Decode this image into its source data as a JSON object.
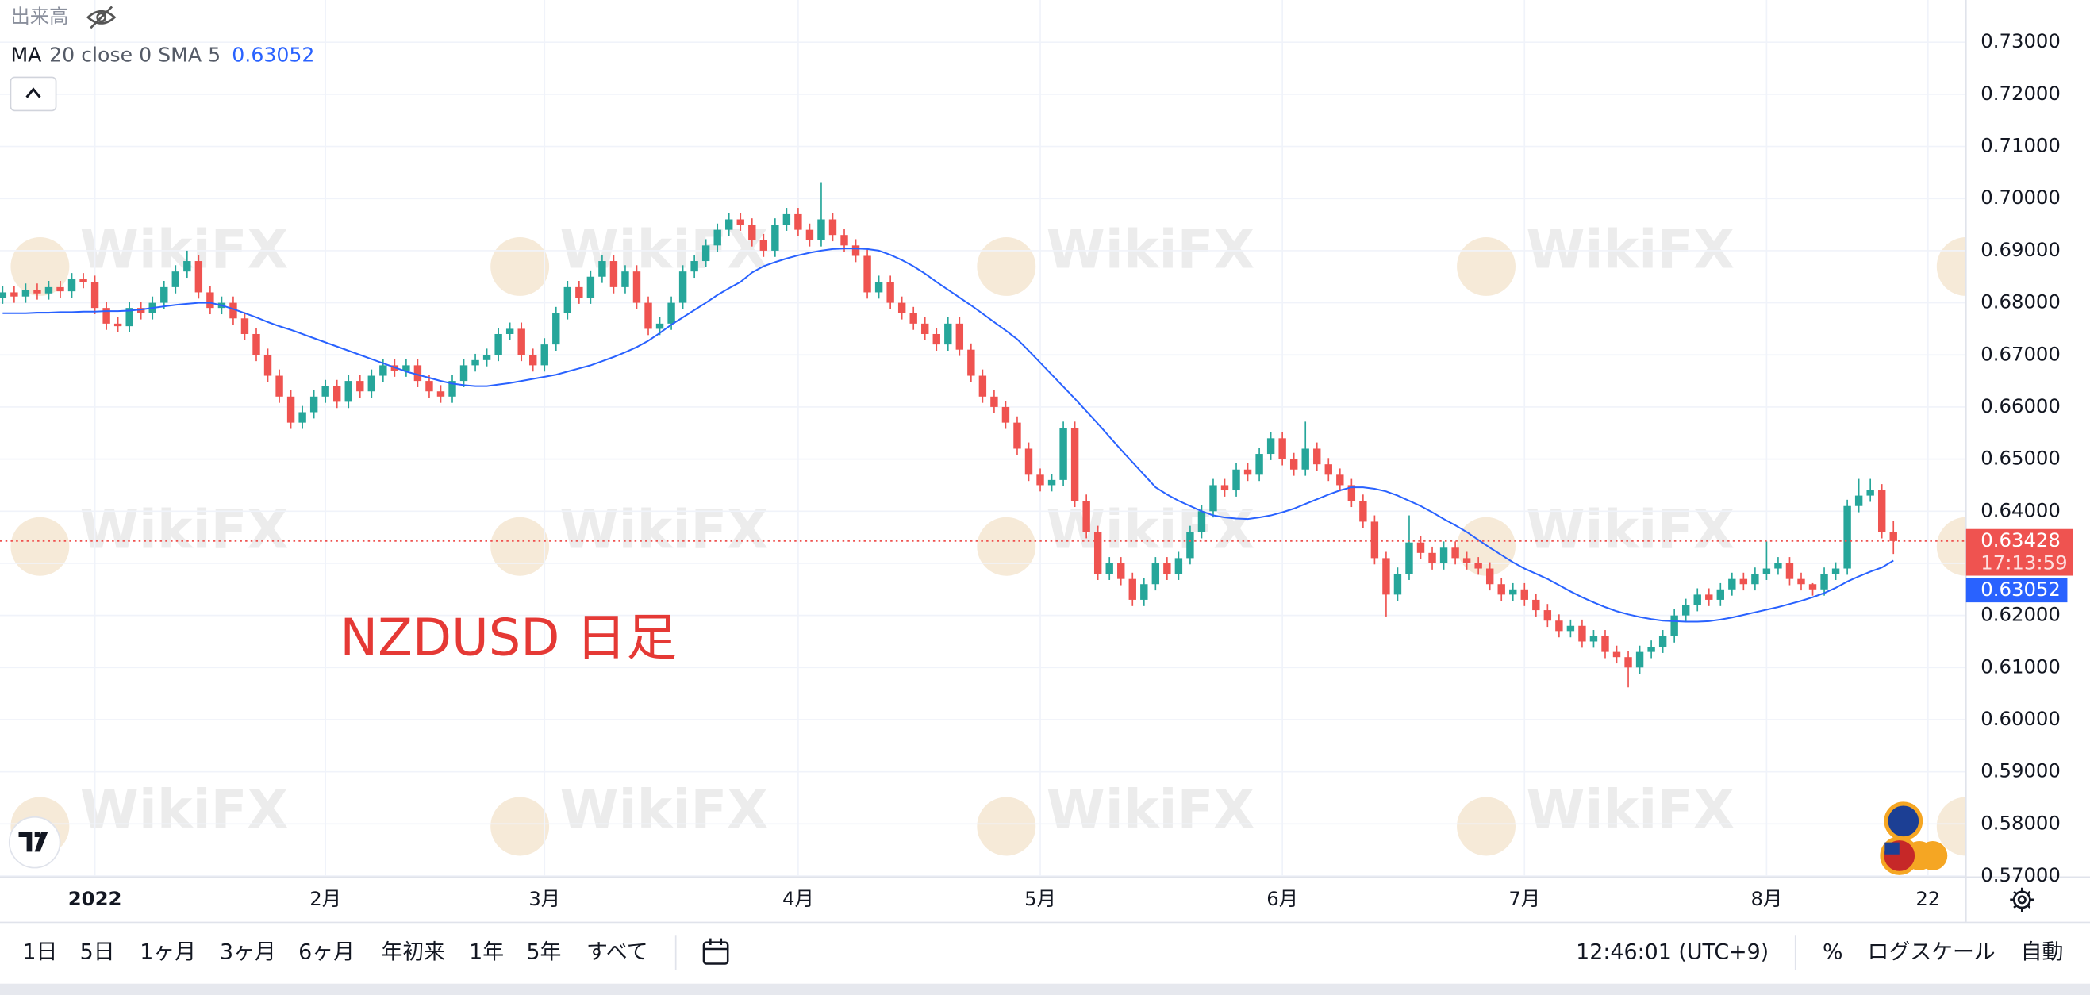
{
  "chart_data": {
    "type": "candlestick",
    "volume_label": "出来高",
    "indicator_name": "MA",
    "indicator_params": "20 close 0 SMA 5",
    "annotation": "NZDUSD 日足",
    "watermark": "WikiFX",
    "countdown": "17:13:59",
    "up_color": "#26a69a",
    "down_color": "#ef5350",
    "grid": true,
    "ylim": [
      0.5698,
      0.7381
    ],
    "yticks": [
      {
        "value": 0.57,
        "label": "0.57000"
      },
      {
        "value": 0.58,
        "label": "0.58000"
      },
      {
        "value": 0.59,
        "label": "0.59000"
      },
      {
        "value": 0.6,
        "label": "0.60000"
      },
      {
        "value": 0.61,
        "label": "0.61000"
      },
      {
        "value": 0.62,
        "label": "0.62000"
      },
      {
        "value": 0.63,
        "label": "0.63000"
      },
      {
        "value": 0.64,
        "label": "0.64000"
      },
      {
        "value": 0.65,
        "label": "0.65000"
      },
      {
        "value": 0.66,
        "label": "0.66000"
      },
      {
        "value": 0.67,
        "label": "0.67000"
      },
      {
        "value": 0.68,
        "label": "0.68000"
      },
      {
        "value": 0.69,
        "label": "0.69000"
      },
      {
        "value": 0.7,
        "label": "0.70000"
      },
      {
        "value": 0.71,
        "label": "0.71000"
      },
      {
        "value": 0.72,
        "label": "0.72000"
      },
      {
        "value": 0.73,
        "label": "0.73000"
      }
    ],
    "xlim": [
      -0.23,
      170.3
    ],
    "xticks": [
      {
        "value": 8,
        "label": "2022"
      },
      {
        "value": 28,
        "label": "2月"
      },
      {
        "value": 47,
        "label": "3月"
      },
      {
        "value": 69,
        "label": "4月"
      },
      {
        "value": 90,
        "label": "5月"
      },
      {
        "value": 111,
        "label": "6月"
      },
      {
        "value": 132,
        "label": "7月"
      },
      {
        "value": 153,
        "label": "8月"
      },
      {
        "value": 167,
        "label": "22"
      }
    ],
    "open": [
      0.681,
      0.682,
      0.6812,
      0.6825,
      0.6818,
      0.683,
      0.6822,
      0.6845,
      0.684,
      0.679,
      0.676,
      0.6755,
      0.679,
      0.678,
      0.68,
      0.683,
      0.686,
      0.688,
      0.682,
      0.679,
      0.68,
      0.677,
      0.674,
      0.67,
      0.666,
      0.662,
      0.657,
      0.659,
      0.662,
      0.664,
      0.661,
      0.665,
      0.663,
      0.666,
      0.668,
      0.667,
      0.668,
      0.665,
      0.663,
      0.662,
      0.665,
      0.668,
      0.669,
      0.67,
      0.674,
      0.675,
      0.67,
      0.668,
      0.672,
      0.678,
      0.683,
      0.681,
      0.685,
      0.688,
      0.683,
      0.686,
      0.68,
      0.675,
      0.676,
      0.68,
      0.686,
      0.688,
      0.691,
      0.694,
      0.696,
      0.695,
      0.692,
      0.69,
      0.695,
      0.697,
      0.694,
      0.692,
      0.696,
      0.693,
      0.691,
      0.689,
      0.682,
      0.684,
      0.68,
      0.678,
      0.676,
      0.674,
      0.672,
      0.676,
      0.671,
      0.666,
      0.662,
      0.66,
      0.657,
      0.652,
      0.647,
      0.645,
      0.646,
      0.656,
      0.642,
      0.636,
      0.628,
      0.63,
      0.627,
      0.623,
      0.626,
      0.63,
      0.628,
      0.631,
      0.636,
      0.64,
      0.645,
      0.644,
      0.648,
      0.647,
      0.651,
      0.654,
      0.65,
      0.648,
      0.652,
      0.649,
      0.647,
      0.645,
      0.642,
      0.638,
      0.631,
      0.624,
      0.628,
      0.634,
      0.632,
      0.63,
      0.633,
      0.631,
      0.63,
      0.629,
      0.626,
      0.624,
      0.625,
      0.623,
      0.621,
      0.619,
      0.617,
      0.618,
      0.615,
      0.616,
      0.613,
      0.612,
      0.61,
      0.613,
      0.614,
      0.616,
      0.62,
      0.622,
      0.624,
      0.623,
      0.625,
      0.627,
      0.626,
      0.628,
      0.629,
      0.63,
      0.627,
      0.626,
      0.625,
      0.628,
      0.629,
      0.641,
      0.643,
      0.644,
      0.636
    ],
    "high": [
      0.6832,
      0.6832,
      0.6837,
      0.6837,
      0.6842,
      0.6842,
      0.6857,
      0.6857,
      0.6852,
      0.6802,
      0.6772,
      0.6802,
      0.6802,
      0.6812,
      0.6842,
      0.6872,
      0.69,
      0.6892,
      0.6832,
      0.6812,
      0.6812,
      0.6782,
      0.6752,
      0.6712,
      0.6672,
      0.6632,
      0.6602,
      0.6632,
      0.6652,
      0.6652,
      0.6662,
      0.6662,
      0.6672,
      0.6692,
      0.6692,
      0.6692,
      0.6692,
      0.6662,
      0.6642,
      0.6662,
      0.6692,
      0.6702,
      0.6712,
      0.6752,
      0.6762,
      0.6762,
      0.6712,
      0.6732,
      0.6792,
      0.6842,
      0.6842,
      0.6862,
      0.6892,
      0.6892,
      0.6872,
      0.6872,
      0.6812,
      0.6772,
      0.6812,
      0.6872,
      0.6892,
      0.6922,
      0.6952,
      0.6972,
      0.6972,
      0.6962,
      0.6932,
      0.6962,
      0.6982,
      0.6982,
      0.6952,
      0.703,
      0.6972,
      0.6942,
      0.6922,
      0.6902,
      0.6852,
      0.6852,
      0.6812,
      0.6792,
      0.6772,
      0.6752,
      0.6772,
      0.6772,
      0.6722,
      0.6672,
      0.6632,
      0.6612,
      0.6582,
      0.6532,
      0.6482,
      0.6472,
      0.6572,
      0.6572,
      0.6432,
      0.6372,
      0.6312,
      0.6312,
      0.6282,
      0.6272,
      0.6312,
      0.6312,
      0.6322,
      0.6372,
      0.6412,
      0.6462,
      0.6462,
      0.6492,
      0.6492,
      0.6522,
      0.6552,
      0.6552,
      0.6512,
      0.6572,
      0.6532,
      0.6502,
      0.6482,
      0.6462,
      0.6432,
      0.6392,
      0.6322,
      0.6292,
      0.6392,
      0.6352,
      0.6332,
      0.6342,
      0.6342,
      0.6322,
      0.6312,
      0.6302,
      0.6272,
      0.6262,
      0.6262,
      0.6242,
      0.6222,
      0.6202,
      0.6192,
      0.6192,
      0.6172,
      0.6172,
      0.6142,
      0.6132,
      0.6142,
      0.6152,
      0.6172,
      0.6212,
      0.6232,
      0.6252,
      0.6252,
      0.6262,
      0.6282,
      0.6282,
      0.6292,
      0.6342,
      0.6312,
      0.6312,
      0.6282,
      0.6262,
      0.6292,
      0.6302,
      0.6422,
      0.6462,
      0.6462,
      0.6452,
      0.6382
    ],
    "low": [
      0.6798,
      0.68,
      0.68,
      0.6806,
      0.6806,
      0.681,
      0.681,
      0.6828,
      0.6778,
      0.6748,
      0.6743,
      0.6743,
      0.6768,
      0.6768,
      0.6788,
      0.6818,
      0.6848,
      0.6808,
      0.6778,
      0.6778,
      0.6758,
      0.6728,
      0.6688,
      0.6648,
      0.6608,
      0.6558,
      0.6558,
      0.6578,
      0.6608,
      0.6598,
      0.6598,
      0.6618,
      0.6618,
      0.6648,
      0.6658,
      0.6658,
      0.6638,
      0.6618,
      0.6608,
      0.6608,
      0.6638,
      0.6668,
      0.6678,
      0.6688,
      0.6728,
      0.6688,
      0.6668,
      0.6668,
      0.6708,
      0.6768,
      0.6798,
      0.6798,
      0.6838,
      0.6818,
      0.6818,
      0.6788,
      0.6738,
      0.6738,
      0.6748,
      0.6788,
      0.6848,
      0.6868,
      0.6898,
      0.6928,
      0.6938,
      0.6908,
      0.6888,
      0.6888,
      0.6938,
      0.6928,
      0.6908,
      0.6908,
      0.6918,
      0.6898,
      0.6878,
      0.6808,
      0.6808,
      0.6788,
      0.6768,
      0.6748,
      0.6728,
      0.6708,
      0.6708,
      0.6698,
      0.6648,
      0.6608,
      0.6588,
      0.6558,
      0.6508,
      0.6458,
      0.6438,
      0.6438,
      0.6448,
      0.6408,
      0.6348,
      0.6268,
      0.6268,
      0.6258,
      0.6218,
      0.6218,
      0.6248,
      0.6268,
      0.6268,
      0.6298,
      0.6348,
      0.6388,
      0.6428,
      0.6428,
      0.6458,
      0.6458,
      0.6498,
      0.6488,
      0.6468,
      0.6468,
      0.6478,
      0.6458,
      0.6438,
      0.6408,
      0.6368,
      0.6298,
      0.6198,
      0.6228,
      0.6268,
      0.6308,
      0.6288,
      0.6288,
      0.6298,
      0.6288,
      0.6278,
      0.6248,
      0.6228,
      0.6228,
      0.6218,
      0.6198,
      0.6178,
      0.6158,
      0.6158,
      0.6138,
      0.6138,
      0.6118,
      0.6108,
      0.6062,
      0.6088,
      0.6118,
      0.6128,
      0.6148,
      0.6188,
      0.6208,
      0.6218,
      0.6218,
      0.6238,
      0.6248,
      0.6248,
      0.6268,
      0.6278,
      0.6258,
      0.6248,
      0.6238,
      0.6238,
      0.6268,
      0.6278,
      0.6398,
      0.6418,
      0.6348,
      0.6318
    ],
    "close": [
      0.682,
      0.6812,
      0.6825,
      0.6818,
      0.683,
      0.6822,
      0.6845,
      0.684,
      0.679,
      0.676,
      0.6755,
      0.679,
      0.678,
      0.68,
      0.683,
      0.686,
      0.688,
      0.682,
      0.679,
      0.68,
      0.677,
      0.674,
      0.67,
      0.666,
      0.662,
      0.657,
      0.659,
      0.662,
      0.664,
      0.661,
      0.665,
      0.663,
      0.666,
      0.668,
      0.667,
      0.668,
      0.665,
      0.663,
      0.662,
      0.665,
      0.668,
      0.669,
      0.67,
      0.674,
      0.675,
      0.67,
      0.668,
      0.672,
      0.678,
      0.683,
      0.681,
      0.685,
      0.688,
      0.683,
      0.686,
      0.68,
      0.675,
      0.676,
      0.68,
      0.686,
      0.688,
      0.691,
      0.694,
      0.696,
      0.695,
      0.692,
      0.69,
      0.695,
      0.697,
      0.694,
      0.692,
      0.696,
      0.693,
      0.691,
      0.689,
      0.682,
      0.684,
      0.68,
      0.678,
      0.676,
      0.674,
      0.672,
      0.676,
      0.671,
      0.666,
      0.662,
      0.66,
      0.657,
      0.652,
      0.647,
      0.645,
      0.646,
      0.656,
      0.642,
      0.636,
      0.628,
      0.63,
      0.627,
      0.623,
      0.626,
      0.63,
      0.628,
      0.631,
      0.636,
      0.64,
      0.645,
      0.644,
      0.648,
      0.647,
      0.651,
      0.654,
      0.65,
      0.648,
      0.652,
      0.649,
      0.647,
      0.645,
      0.642,
      0.638,
      0.631,
      0.624,
      0.628,
      0.634,
      0.632,
      0.63,
      0.633,
      0.631,
      0.63,
      0.629,
      0.626,
      0.624,
      0.625,
      0.623,
      0.621,
      0.619,
      0.617,
      0.618,
      0.615,
      0.616,
      0.613,
      0.612,
      0.61,
      0.613,
      0.614,
      0.616,
      0.62,
      0.622,
      0.624,
      0.623,
      0.625,
      0.627,
      0.626,
      0.628,
      0.629,
      0.63,
      0.627,
      0.626,
      0.625,
      0.628,
      0.629,
      0.641,
      0.643,
      0.644,
      0.636,
      0.63428
    ],
    "ma": {
      "color": "#2962ff",
      "values": [
        0.678,
        0.678,
        0.678,
        0.6781,
        0.6781,
        0.6782,
        0.6782,
        0.6783,
        0.6783,
        0.6784,
        0.6784,
        0.6785,
        0.6787,
        0.679,
        0.6793,
        0.6796,
        0.6798,
        0.68,
        0.68,
        0.6795,
        0.6788,
        0.678,
        0.6772,
        0.6763,
        0.6755,
        0.6748,
        0.674,
        0.6732,
        0.6724,
        0.6716,
        0.6708,
        0.67,
        0.6692,
        0.6684,
        0.6676,
        0.6668,
        0.6662,
        0.6656,
        0.665,
        0.6645,
        0.6642,
        0.664,
        0.664,
        0.6643,
        0.6646,
        0.665,
        0.6654,
        0.6658,
        0.6662,
        0.6668,
        0.6674,
        0.668,
        0.6688,
        0.6696,
        0.6705,
        0.6715,
        0.6727,
        0.6742,
        0.6758,
        0.6772,
        0.6786,
        0.68,
        0.6815,
        0.6828,
        0.684,
        0.6858,
        0.687,
        0.6878,
        0.6885,
        0.6891,
        0.6896,
        0.69,
        0.6903,
        0.6904,
        0.6904,
        0.6903,
        0.69,
        0.6892,
        0.6882,
        0.687,
        0.6856,
        0.684,
        0.6825,
        0.681,
        0.6795,
        0.6779,
        0.6763,
        0.6747,
        0.673,
        0.6708,
        0.6685,
        0.6662,
        0.6639,
        0.6616,
        0.6592,
        0.6568,
        0.6543,
        0.6518,
        0.6494,
        0.647,
        0.6446,
        0.6432,
        0.642,
        0.641,
        0.64,
        0.6392,
        0.6388,
        0.6386,
        0.6385,
        0.6388,
        0.6392,
        0.6398,
        0.6405,
        0.6414,
        0.6423,
        0.6432,
        0.644,
        0.6446,
        0.6446,
        0.6443,
        0.6438,
        0.643,
        0.642,
        0.641,
        0.6398,
        0.6385,
        0.6373,
        0.636,
        0.6345,
        0.633,
        0.6316,
        0.6302,
        0.629,
        0.628,
        0.627,
        0.6258,
        0.6246,
        0.6235,
        0.6225,
        0.6216,
        0.6208,
        0.6202,
        0.6197,
        0.6193,
        0.619,
        0.6189,
        0.6188,
        0.6188,
        0.6189,
        0.6192,
        0.6196,
        0.6201,
        0.6206,
        0.6211,
        0.6216,
        0.6222,
        0.6228,
        0.6235,
        0.6243,
        0.6253,
        0.6265,
        0.6275,
        0.6284,
        0.6292,
        0.63052
      ]
    }
  },
  "toolbar": {
    "ranges": [
      "1日",
      "5日",
      "1ヶ月",
      "3ヶ月",
      "6ヶ月",
      "年初来",
      "1年",
      "5年",
      "すべて"
    ],
    "clock": "12:46:01 (UTC+9)",
    "percent": "%",
    "log_scale": "ログスケール",
    "auto": "自動"
  }
}
